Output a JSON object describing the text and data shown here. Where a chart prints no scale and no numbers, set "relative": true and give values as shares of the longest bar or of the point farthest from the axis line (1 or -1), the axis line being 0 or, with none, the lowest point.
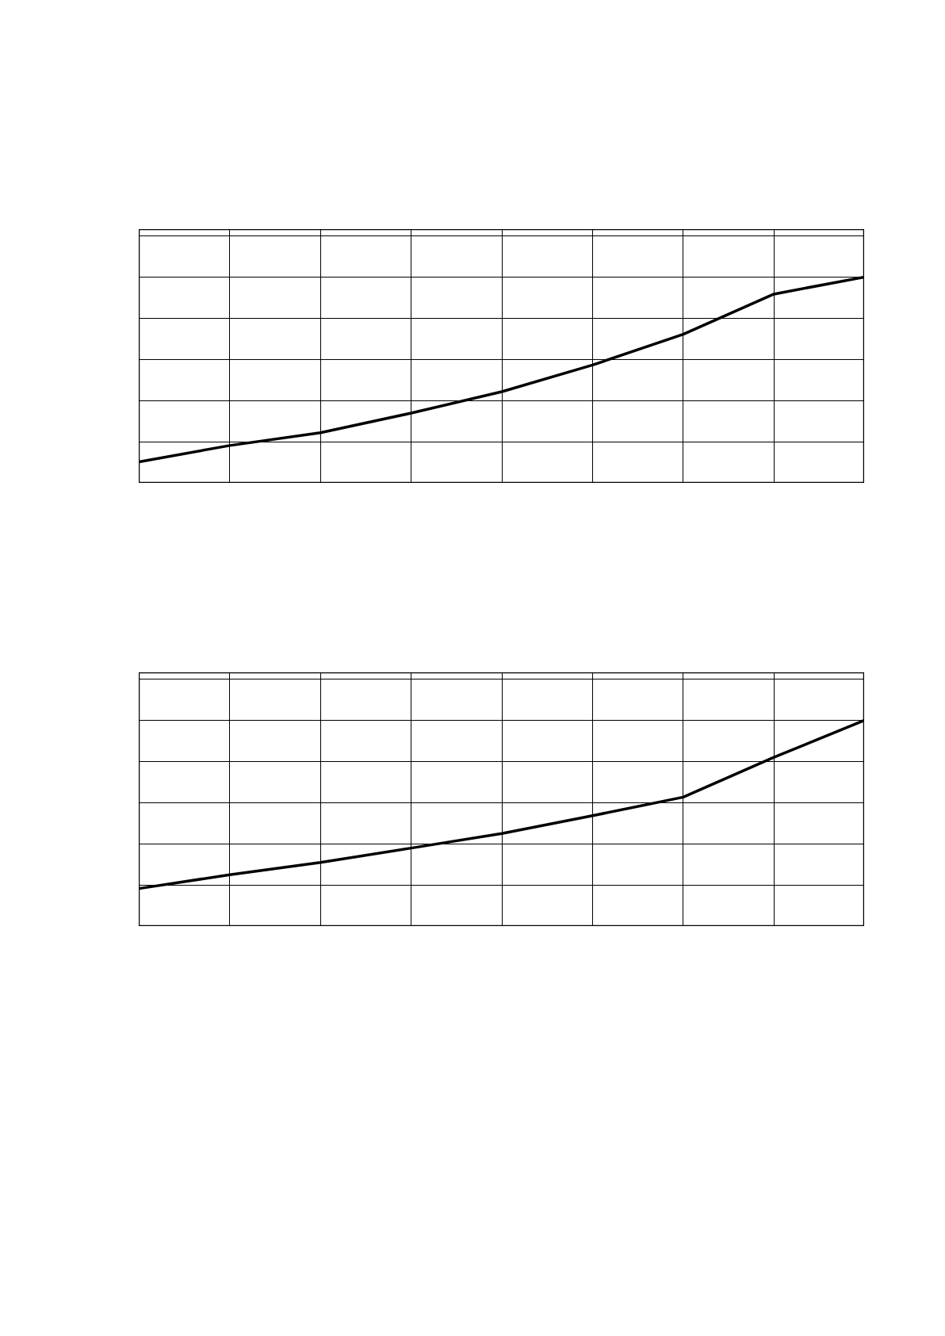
{
  "chart_data": [
    {
      "type": "line",
      "relative": true,
      "categories": [
        null,
        null,
        null,
        null,
        null,
        null,
        null,
        null,
        null
      ],
      "series": [
        {
          "color": "#000000",
          "values": [
            0.104,
            0.183,
            0.245,
            0.34,
            0.444,
            0.573,
            0.722,
            0.917,
            1.0
          ]
        }
      ],
      "grid": true,
      "tick_labels": false,
      "marker": "none",
      "line_style": "solid"
    },
    {
      "type": "line",
      "relative": true,
      "categories": [
        null,
        null,
        null,
        null,
        null,
        null,
        null,
        null,
        null
      ],
      "series": [
        {
          "color": "#000000",
          "values": [
            0.184,
            0.251,
            0.31,
            0.38,
            0.451,
            0.537,
            0.627,
            0.82,
            1.0
          ]
        }
      ],
      "grid": true,
      "tick_labels": false,
      "marker": "none",
      "line_style": "solid"
    }
  ]
}
